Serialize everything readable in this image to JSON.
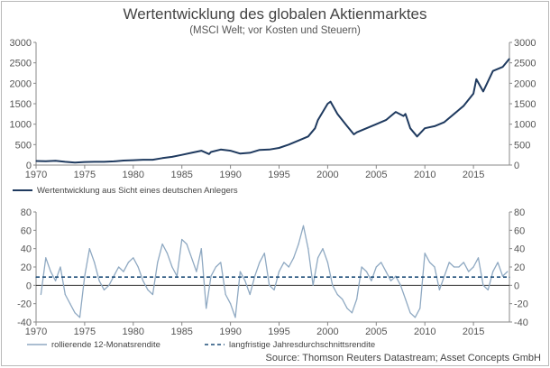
{
  "title": "Wertentwicklung des globalen Aktienmarktes",
  "subtitle": "(MSCI Welt; vor Kosten und Steuern)",
  "source": "Source: Thomson Reuters Datastream; Asset Concepts GmbH",
  "colors": {
    "value_line": "#1f3a5f",
    "rolling_line": "#8fa9c2",
    "longterm_line": "#1f4e79",
    "zero_line": "#333333",
    "axis": "#888888"
  },
  "chart_data": [
    {
      "type": "line",
      "title": "",
      "xlabel": "",
      "ylabel": "",
      "xlim": [
        1970,
        2018.7
      ],
      "ylim": [
        0,
        3000
      ],
      "x_ticks": [
        "1970",
        "1975",
        "1980",
        "1985",
        "1990",
        "1995",
        "2000",
        "2005",
        "2010",
        "2015"
      ],
      "y_ticks": [
        "0",
        "500",
        "1000",
        "1500",
        "2000",
        "2500",
        "3000"
      ],
      "legend_position": "bottom-left",
      "series": [
        {
          "name": "Wertentwicklung aus Sicht eines deutschen Anlegers",
          "color": "#1f3a5f",
          "x": [
            1970,
            1971,
            1972,
            1973,
            1974,
            1975,
            1976,
            1977,
            1978,
            1979,
            1980,
            1981,
            1982,
            1983,
            1984,
            1985,
            1986,
            1987,
            1987.8,
            1988,
            1989,
            1990,
            1991,
            1992,
            1993,
            1994,
            1995,
            1996,
            1997,
            1998,
            1998.7,
            1999,
            2000,
            2000.3,
            2001,
            2002,
            2002.7,
            2003,
            2004,
            2005,
            2006,
            2007,
            2007.8,
            2008,
            2008.5,
            2009.2,
            2010,
            2011,
            2012,
            2013,
            2014,
            2015,
            2015.3,
            2016,
            2017,
            2018,
            2018.7
          ],
          "values": [
            100,
            95,
            105,
            80,
            60,
            75,
            80,
            80,
            90,
            110,
            120,
            130,
            130,
            170,
            200,
            250,
            300,
            350,
            270,
            320,
            380,
            350,
            280,
            300,
            370,
            380,
            420,
            500,
            600,
            700,
            900,
            1100,
            1500,
            1550,
            1250,
            950,
            750,
            800,
            900,
            1000,
            1100,
            1300,
            1200,
            1250,
            900,
            700,
            900,
            950,
            1050,
            1250,
            1450,
            1750,
            2100,
            1800,
            2300,
            2400,
            2600
          ]
        }
      ]
    },
    {
      "type": "line",
      "title": "",
      "xlabel": "",
      "ylabel": "",
      "xlim": [
        1970,
        2018.7
      ],
      "ylim": [
        -40,
        80
      ],
      "x_ticks": [
        "1970",
        "1975",
        "1980",
        "1985",
        "1990",
        "1995",
        "2000",
        "2005",
        "2010",
        "2015"
      ],
      "y_ticks": [
        "-40",
        "-20",
        "0",
        "20",
        "40",
        "60",
        "80"
      ],
      "legend_position": "bottom",
      "series": [
        {
          "name": "rollierende 12-Monatsrendite",
          "color": "#8fa9c2",
          "x": [
            1970.5,
            1971,
            1971.5,
            1972,
            1972.5,
            1973,
            1973.5,
            1974,
            1974.5,
            1975,
            1975.5,
            1976,
            1976.5,
            1977,
            1977.5,
            1978,
            1978.5,
            1979,
            1979.5,
            1980,
            1980.5,
            1981,
            1981.5,
            1982,
            1982.5,
            1983,
            1983.5,
            1984,
            1984.5,
            1985,
            1985.5,
            1986,
            1986.5,
            1987,
            1987.5,
            1988,
            1988.5,
            1989,
            1989.5,
            1990,
            1990.5,
            1991,
            1991.5,
            1992,
            1992.5,
            1993,
            1993.5,
            1994,
            1994.5,
            1995,
            1995.5,
            1996,
            1996.5,
            1997,
            1997.5,
            1998,
            1998.5,
            1999,
            1999.5,
            2000,
            2000.5,
            2001,
            2001.5,
            2002,
            2002.5,
            2003,
            2003.5,
            2004,
            2004.5,
            2005,
            2005.5,
            2006,
            2006.5,
            2007,
            2007.5,
            2008,
            2008.5,
            2009,
            2009.5,
            2010,
            2010.5,
            2011,
            2011.5,
            2012,
            2012.5,
            2013,
            2013.5,
            2014,
            2014.5,
            2015,
            2015.5,
            2016,
            2016.5,
            2017,
            2017.5,
            2018,
            2018.5
          ],
          "values": [
            -10,
            30,
            15,
            5,
            20,
            -10,
            -20,
            -30,
            -35,
            10,
            40,
            25,
            5,
            -5,
            0,
            10,
            20,
            15,
            25,
            30,
            20,
            5,
            -5,
            -10,
            25,
            45,
            35,
            20,
            10,
            50,
            45,
            30,
            15,
            40,
            -25,
            10,
            20,
            25,
            -10,
            -20,
            -35,
            15,
            5,
            -10,
            10,
            25,
            35,
            0,
            -5,
            15,
            25,
            20,
            30,
            45,
            65,
            40,
            0,
            30,
            40,
            25,
            0,
            -10,
            -15,
            -25,
            -30,
            -15,
            20,
            15,
            5,
            20,
            25,
            15,
            5,
            10,
            0,
            -15,
            -30,
            -35,
            -25,
            35,
            25,
            20,
            -5,
            10,
            25,
            20,
            20,
            25,
            15,
            20,
            30,
            0,
            -5,
            15,
            25,
            10,
            15
          ]
        },
        {
          "name": "langfristige Jahresdurchschnittsrendite",
          "color": "#1f4e79",
          "x": [
            1970,
            2018.7
          ],
          "values": [
            9,
            9
          ]
        }
      ]
    }
  ]
}
